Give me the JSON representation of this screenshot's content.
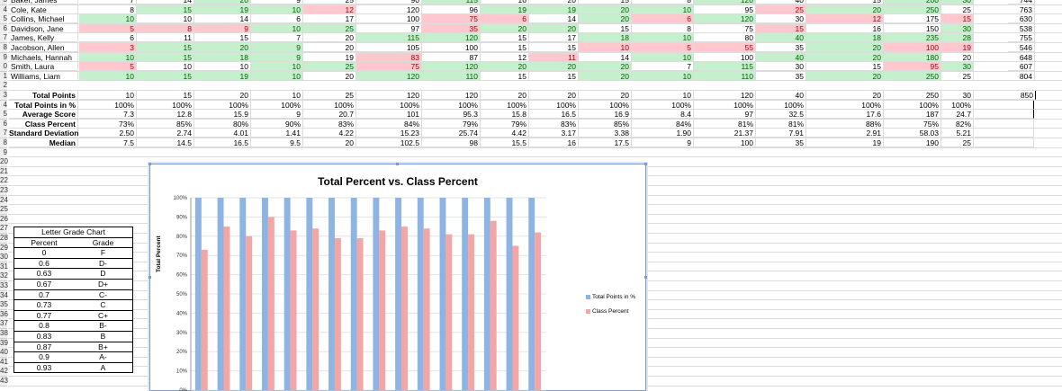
{
  "row_numbers": [
    "3",
    "4",
    "5",
    "6",
    "7",
    "8",
    "9",
    "0",
    "1",
    "2",
    "3",
    "4",
    "5",
    "6",
    "7",
    "8",
    "9",
    "20",
    "21",
    "22",
    "23",
    "24",
    "25",
    "26",
    "27",
    "28",
    "29",
    "30",
    "31",
    "32",
    "33",
    "34",
    "35",
    "36",
    "37",
    "38",
    "39",
    "40",
    "41",
    "42",
    "43"
  ],
  "students": [
    {
      "name": "Baker, James",
      "vals": [
        "7",
        "14",
        "20",
        "9",
        "25",
        "90",
        "115",
        "16",
        "20",
        "15",
        "8",
        "120",
        "40",
        "15",
        "200",
        "30"
      ],
      "fmt": [
        "",
        "",
        "g",
        "",
        "",
        "",
        "g",
        "",
        "",
        "",
        "",
        "g",
        "",
        "",
        "g",
        "g"
      ]
    },
    {
      "name": "Cole, Kate",
      "vals": [
        "8",
        "15",
        "19",
        "10",
        "12",
        "120",
        "96",
        "19",
        "19",
        "20",
        "10",
        "95",
        "25",
        "20",
        "250",
        "25"
      ],
      "fmt": [
        "",
        "g",
        "g",
        "g",
        "r",
        "",
        "",
        "g",
        "g",
        "g",
        "g",
        "",
        "r",
        "g",
        "g",
        ""
      ]
    },
    {
      "name": "Collins, Michael",
      "vals": [
        "10",
        "10",
        "14",
        "6",
        "17",
        "100",
        "75",
        "6",
        "14",
        "20",
        "6",
        "120",
        "30",
        "12",
        "175",
        "15"
      ],
      "fmt": [
        "g",
        "",
        "",
        "",
        "",
        "",
        "r",
        "r",
        "",
        "g",
        "r",
        "g",
        "",
        "r",
        "",
        "r"
      ]
    },
    {
      "name": "Davidson, Jane",
      "vals": [
        "5",
        "8",
        "9",
        "10",
        "25",
        "97",
        "35",
        "20",
        "20",
        "15",
        "8",
        "75",
        "15",
        "16",
        "150",
        "30"
      ],
      "fmt": [
        "r",
        "r",
        "r",
        "g",
        "g",
        "",
        "r",
        "g",
        "g",
        "",
        "",
        "",
        "r",
        "",
        "",
        "g"
      ]
    },
    {
      "name": "James, Kelly",
      "vals": [
        "6",
        "11",
        "15",
        "7",
        "20",
        "115",
        "120",
        "15",
        "17",
        "18",
        "10",
        "80",
        "40",
        "18",
        "235",
        "28"
      ],
      "fmt": [
        "",
        "",
        "",
        "",
        "",
        "g",
        "g",
        "",
        "",
        "g",
        "g",
        "",
        "g",
        "g",
        "g",
        "g"
      ]
    },
    {
      "name": "Jacobson, Allen",
      "vals": [
        "3",
        "15",
        "20",
        "9",
        "20",
        "105",
        "100",
        "15",
        "15",
        "10",
        "5",
        "55",
        "35",
        "20",
        "100",
        "19"
      ],
      "fmt": [
        "r",
        "g",
        "g",
        "g",
        "",
        "",
        "",
        "",
        "",
        "r",
        "r",
        "r",
        "",
        "g",
        "r",
        "r"
      ]
    },
    {
      "name": "Michaels, Hannah",
      "vals": [
        "10",
        "15",
        "18",
        "9",
        "19",
        "83",
        "87",
        "12",
        "11",
        "14",
        "10",
        "100",
        "40",
        "20",
        "180",
        "20"
      ],
      "fmt": [
        "g",
        "g",
        "g",
        "g",
        "",
        "r",
        "",
        "",
        "r",
        "",
        "g",
        "",
        "g",
        "g",
        "g",
        ""
      ]
    },
    {
      "name": "Smith, Laura",
      "vals": [
        "5",
        "10",
        "10",
        "10",
        "25",
        "75",
        "120",
        "20",
        "20",
        "20",
        "7",
        "115",
        "30",
        "15",
        "95",
        "30"
      ],
      "fmt": [
        "r",
        "",
        "",
        "g",
        "g",
        "r",
        "g",
        "g",
        "g",
        "g",
        "",
        "g",
        "",
        "",
        "r",
        "g"
      ]
    },
    {
      "name": "Williams, Liam",
      "vals": [
        "10",
        "15",
        "19",
        "10",
        "20",
        "120",
        "110",
        "15",
        "15",
        "20",
        "10",
        "110",
        "35",
        "20",
        "250",
        "25"
      ],
      "fmt": [
        "g",
        "g",
        "g",
        "g",
        "",
        "g",
        "g",
        "",
        "",
        "g",
        "g",
        "g",
        "",
        "g",
        "g",
        ""
      ]
    }
  ],
  "right_totals": [
    "744",
    "763",
    "630",
    "538",
    "755",
    "546",
    "648",
    "607",
    "804"
  ],
  "summary": [
    {
      "label": "Total Points",
      "vals": [
        "10",
        "15",
        "20",
        "10",
        "25",
        "120",
        "120",
        "20",
        "20",
        "20",
        "10",
        "120",
        "40",
        "20",
        "250",
        "30"
      ],
      "extra": "850"
    },
    {
      "label": "Total Points in %",
      "vals": [
        "100%",
        "100%",
        "100%",
        "100%",
        "100%",
        "100%",
        "100%",
        "100%",
        "100%",
        "100%",
        "100%",
        "100%",
        "100%",
        "100%",
        "100%",
        "100%"
      ],
      "extra": ""
    },
    {
      "label": "Average Score",
      "vals": [
        "7.3",
        "12.8",
        "15.9",
        "9",
        "20.7",
        "101",
        "95.3",
        "15.8",
        "16.5",
        "16.9",
        "8.4",
        "97",
        "32.5",
        "17.6",
        "187",
        "24.7"
      ],
      "extra": ""
    },
    {
      "label": "Class Percent",
      "vals": [
        "73%",
        "85%",
        "80%",
        "90%",
        "83%",
        "84%",
        "79%",
        "79%",
        "83%",
        "85%",
        "84%",
        "81%",
        "81%",
        "88%",
        "75%",
        "82%"
      ],
      "extra": ""
    },
    {
      "label": "Standard Deviation",
      "vals": [
        "2.50",
        "2.74",
        "4.01",
        "1.41",
        "4.22",
        "15.23",
        "25.74",
        "4.42",
        "3.17",
        "3.38",
        "1.90",
        "21.37",
        "7.91",
        "2.91",
        "58.03",
        "5.21"
      ],
      "extra": ""
    },
    {
      "label": "Median",
      "vals": [
        "7.5",
        "14.5",
        "16.5",
        "9.5",
        "20",
        "102.5",
        "98",
        "15.5",
        "16",
        "17.5",
        "9",
        "100",
        "35",
        "19",
        "190",
        "25"
      ],
      "extra": ""
    }
  ],
  "letter_grade_chart": {
    "title": "Letter Grade Chart",
    "headers": [
      "Percent",
      "Grade"
    ],
    "rows": [
      [
        "0",
        "F"
      ],
      [
        "0.6",
        "D-"
      ],
      [
        "0.63",
        "D"
      ],
      [
        "0.67",
        "D+"
      ],
      [
        "0.7",
        "C-"
      ],
      [
        "0.73",
        "C"
      ],
      [
        "0.77",
        "C+"
      ],
      [
        "0.8",
        "B-"
      ],
      [
        "0.83",
        "B"
      ],
      [
        "0.87",
        "B+"
      ],
      [
        "0.9",
        "A-"
      ],
      [
        "0.93",
        "A"
      ]
    ]
  },
  "chart_data": {
    "type": "bar",
    "title": "Total Percent vs. Class Percent",
    "ylabel": "Total Percent",
    "xlabel": "",
    "ylim": [
      0,
      100
    ],
    "yticks": [
      "0%",
      "10%",
      "20%",
      "30%",
      "40%",
      "50%",
      "60%",
      "70%",
      "80%",
      "90%",
      "100%"
    ],
    "series": [
      {
        "name": "Total Points in %",
        "color": "#8db4e2",
        "values": [
          100,
          100,
          100,
          100,
          100,
          100,
          100,
          100,
          100,
          100,
          100,
          100,
          100,
          100,
          100,
          100
        ]
      },
      {
        "name": "Class Percent",
        "color": "#f4a6a6",
        "values": [
          73,
          85,
          80,
          90,
          83,
          84,
          79,
          79,
          83,
          85,
          84,
          81,
          81,
          88,
          75,
          82
        ]
      }
    ],
    "legend_position": "right"
  }
}
